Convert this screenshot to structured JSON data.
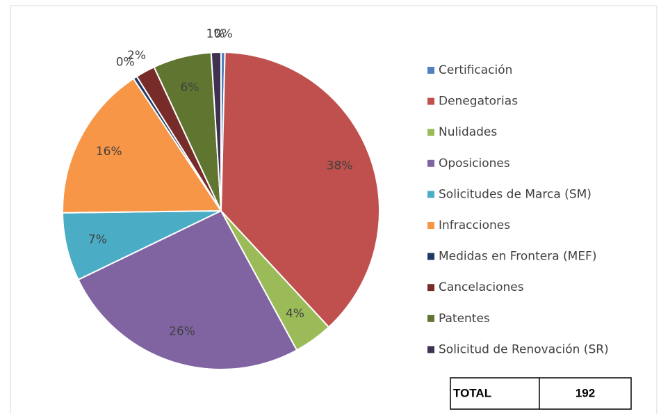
{
  "chart_data": {
    "type": "pie",
    "categories": [
      "Certificación",
      "Denegatorias",
      "Nulidades",
      "Oposiciones",
      "Solicitudes de Marca (SM)",
      "Infracciones",
      "Medidas en Frontera (MEF)",
      "Cancelaciones",
      "Patentes",
      "Solicitud de Renovación (SR)"
    ],
    "values": [
      0.4,
      38,
      4,
      26,
      7,
      16,
      0.4,
      2,
      6,
      1
    ],
    "value_labels": [
      "0%",
      "38%",
      "4%",
      "26%",
      "7%",
      "16%",
      "0%",
      "2%",
      "6%",
      "1%"
    ],
    "colors": [
      "#4f81bd",
      "#c0504d",
      "#9bbb59",
      "#8064a2",
      "#4bacc6",
      "#f79646",
      "#1f3864",
      "#772c2a",
      "#5f7530",
      "#3f3151"
    ],
    "legend": "right",
    "total_label": "TOTAL",
    "total": 192
  }
}
